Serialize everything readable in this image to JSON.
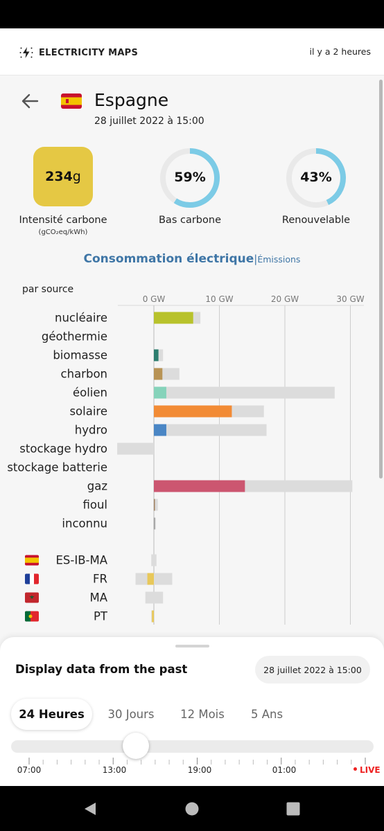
{
  "header": {
    "brand": "ELECTRICITY MAPS",
    "updated": "il y a 2 heures"
  },
  "zone": {
    "name": "Espagne",
    "datetime": "28 juillet 2022 à 15:00"
  },
  "metrics": {
    "carbon_intensity": {
      "value": "234",
      "unit": "g",
      "label": "Intensité carbone",
      "sublabel": "(gCO₂eq/kWh)"
    },
    "low_carbon": {
      "value": "59%",
      "fraction": 0.59,
      "label": "Bas carbone"
    },
    "renewable": {
      "value": "43%",
      "fraction": 0.43,
      "label": "Renouvelable"
    }
  },
  "tabs": {
    "active": "Consommation électrique",
    "separator": "|",
    "other": "Émissions"
  },
  "chart": {
    "by_label": "par source"
  },
  "chart_data": {
    "type": "bar",
    "x_unit": "GW",
    "x_ticks": [
      "0 GW",
      "10 GW",
      "20 GW",
      "30 GW"
    ],
    "x_tick_values": [
      0,
      10,
      20,
      30
    ],
    "categories": [
      "nucléaire",
      "géothermie",
      "biomasse",
      "charbon",
      "éolien",
      "solaire",
      "hydro",
      "stockage hydro",
      "stockage batterie",
      "gaz",
      "fioul",
      "inconnu"
    ],
    "production": [
      6.0,
      0,
      0.7,
      1.3,
      1.9,
      11.9,
      1.9,
      0,
      0,
      13.9,
      0.15,
      0.1
    ],
    "capacity": [
      7.1,
      0,
      1.4,
      3.9,
      27.6,
      16.8,
      17.2,
      -5.6,
      0,
      30.3,
      0.6,
      0.3
    ],
    "colors": [
      "#b8c22c",
      "#aaaaaa",
      "#2c7d6e",
      "#b89355",
      "#86d3ba",
      "#f28b35",
      "#4a86c5",
      "#3f6fb0",
      "#777777",
      "#cc5670",
      "#a08060",
      "#999999"
    ],
    "exchanges": [
      {
        "zone": "ES-IB-MA",
        "flag": "es",
        "value": 0,
        "capacity": [
          -0.4,
          0.4
        ]
      },
      {
        "zone": "FR",
        "flag": "fr",
        "value": -1.0,
        "capacity": [
          -2.8,
          2.8
        ],
        "color": "#e8c85a"
      },
      {
        "zone": "MA",
        "flag": "ma",
        "value": 0,
        "capacity": [
          -1.3,
          1.4
        ]
      },
      {
        "zone": "PT",
        "flag": "pt",
        "value": -0.3,
        "capacity": [
          -0.4,
          0.1
        ],
        "color": "#e8c85a"
      }
    ]
  },
  "past": {
    "title": "Display data from the past",
    "selected_date": "28 juillet 2022 à 15:00",
    "ranges": [
      "24 Heures",
      "30 Jours",
      "12 Mois",
      "5 Ans"
    ],
    "active_range": 0,
    "slider_position": 0.345,
    "time_labels": [
      "07:00",
      "13:00",
      "19:00",
      "01:00"
    ],
    "live": "LIVE"
  },
  "colors": {
    "accent": "#3f76a6",
    "ring": "#7ccbe6",
    "ci": "#e5c844",
    "live": "#e22222"
  }
}
